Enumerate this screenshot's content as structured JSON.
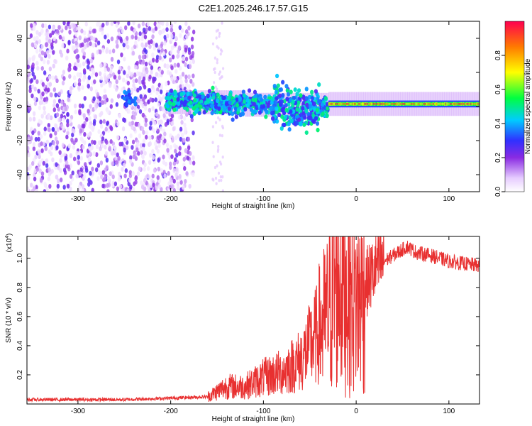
{
  "figure": {
    "title": "C2E1.2025.246.17.57.G15"
  },
  "chart_data": [
    {
      "type": "heatmap",
      "title": "C2E1.2025.246.17.57.G15",
      "xlabel": "Height of straight line (km)",
      "ylabel": "Frequency (Hz)",
      "xlim": [
        -355,
        133
      ],
      "ylim": [
        -50,
        50
      ],
      "xticks": [
        -300,
        -200,
        -100,
        0,
        100
      ],
      "yticks": [
        -40,
        -20,
        0,
        20,
        40
      ],
      "colorbar": {
        "label": "Normalized spectral amplitude",
        "range": [
          0,
          1
        ],
        "ticks": [
          0.0,
          0.2,
          0.4,
          0.6,
          0.8
        ],
        "tick_labels": [
          "0.0",
          "0.2",
          "0.4",
          "0.6",
          "0.8"
        ]
      },
      "regions": [
        {
          "x_range": [
            -355,
            -175
          ],
          "description": "broad-band noise, amplitude 0.05-0.25"
        },
        {
          "x_range": [
            -205,
            -30
          ],
          "center_freq_hz": [
            3,
            0
          ],
          "amplitude": [
            0.3,
            0.5
          ]
        },
        {
          "x_range": [
            -30,
            133
          ],
          "center_freq_hz": 1.5,
          "amplitude": [
            0.6,
            1.0
          ]
        }
      ]
    },
    {
      "type": "line",
      "xlabel": "Height of straight line (km)",
      "ylabel": "SNR (10 * v/v)",
      "y_multiplier": "(x10",
      "y_multiplier_exp": "4",
      "y_multiplier_close": ")",
      "xlim": [
        -355,
        133
      ],
      "ylim": [
        0,
        1.15
      ],
      "xticks": [
        -300,
        -200,
        -100,
        0,
        100
      ],
      "yticks": [
        0.2,
        0.4,
        0.6,
        0.8,
        1.0
      ],
      "ytick_labels": [
        "0.2",
        "0.4",
        "0.6",
        "0.8",
        "1.0"
      ],
      "color": "#e83030",
      "x": [
        -355,
        -300,
        -250,
        -200,
        -160,
        -140,
        -120,
        -100,
        -80,
        -60,
        -50,
        -40,
        -30,
        -25,
        -20,
        -15,
        -10,
        -5,
        0,
        10,
        20,
        30,
        40,
        55,
        65,
        80,
        100,
        120,
        133
      ],
      "y": [
        0.03,
        0.03,
        0.03,
        0.04,
        0.05,
        0.12,
        0.12,
        0.18,
        0.22,
        0.3,
        0.4,
        0.5,
        0.62,
        0.75,
        0.9,
        0.85,
        0.8,
        0.75,
        0.7,
        0.82,
        0.92,
        0.98,
        1.02,
        1.08,
        1.04,
        1.02,
        0.98,
        0.96,
        0.95
      ]
    }
  ]
}
